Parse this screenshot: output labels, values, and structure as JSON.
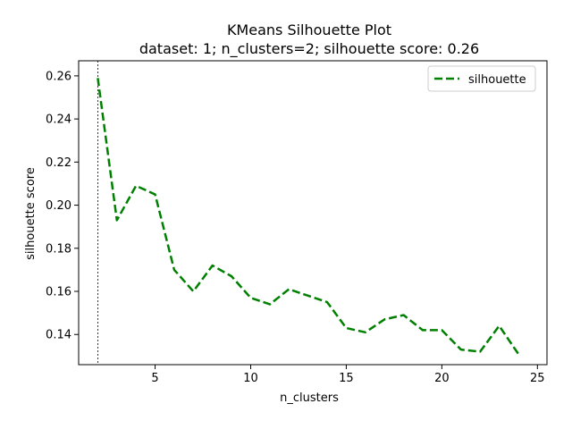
{
  "chart_data": {
    "type": "line",
    "title": "KMeans Silhouette Plot",
    "subtitle": "dataset: 1; n_clusters=2; silhouette score: 0.26",
    "xlabel": "n_clusters",
    "ylabel": "silhouette score",
    "xlim": [
      1,
      25.5
    ],
    "ylim": [
      0.126,
      0.267
    ],
    "xticks": [
      5,
      10,
      15,
      20,
      25
    ],
    "yticks": [
      0.14,
      0.16,
      0.18,
      0.2,
      0.22,
      0.24,
      0.26
    ],
    "ytick_labels": [
      "0.14",
      "0.16",
      "0.18",
      "0.20",
      "0.22",
      "0.24",
      "0.26"
    ],
    "grid": false,
    "legend_position": "top-right",
    "vline_x": 2,
    "series": [
      {
        "name": "silhouette",
        "color": "#008000",
        "style": "dashed",
        "x": [
          2,
          3,
          4,
          5,
          6,
          7,
          8,
          9,
          10,
          11,
          12,
          13,
          14,
          15,
          16,
          17,
          18,
          19,
          20,
          21,
          22,
          23,
          24
        ],
        "y": [
          0.259,
          0.193,
          0.209,
          0.205,
          0.17,
          0.16,
          0.172,
          0.167,
          0.157,
          0.154,
          0.161,
          0.158,
          0.155,
          0.143,
          0.141,
          0.147,
          0.149,
          0.142,
          0.142,
          0.133,
          0.132,
          0.144,
          0.131
        ]
      }
    ]
  }
}
